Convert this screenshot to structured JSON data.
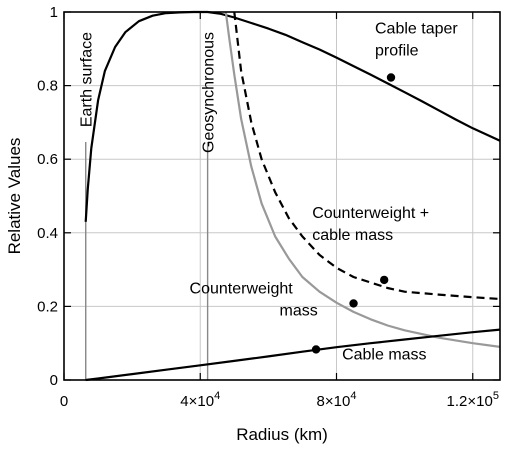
{
  "chart_data": {
    "type": "line",
    "title": "",
    "xlabel": "Radius (km)",
    "ylabel": "Relative Values",
    "xlim": [
      0,
      128000
    ],
    "ylim": [
      0,
      1
    ],
    "x_ticks": [
      {
        "value": 0,
        "label": "0"
      },
      {
        "value": 40000,
        "label": "4×10",
        "exp": "4"
      },
      {
        "value": 80000,
        "label": "8×10",
        "exp": "4"
      },
      {
        "value": 120000,
        "label": "1.2×10",
        "exp": "5"
      }
    ],
    "y_ticks": [
      {
        "value": 0,
        "label": "0"
      },
      {
        "value": 0.2,
        "label": "0.2"
      },
      {
        "value": 0.4,
        "label": "0.4"
      },
      {
        "value": 0.6,
        "label": "0.6"
      },
      {
        "value": 0.8,
        "label": "0.8"
      },
      {
        "value": 1,
        "label": "1"
      }
    ],
    "grid": true,
    "series": [
      {
        "name": "Cable taper profile",
        "style": "solid",
        "color": "#000000",
        "x": [
          6378,
          7000,
          8000,
          10000,
          12000,
          15000,
          18000,
          22000,
          26000,
          30000,
          34000,
          38000,
          42164,
          46000,
          50000,
          55000,
          60000,
          65000,
          70000,
          75000,
          80000,
          85000,
          90000,
          95000,
          100000,
          105000,
          110000,
          115000,
          120000,
          128000
        ],
        "y": [
          0.43,
          0.52,
          0.63,
          0.76,
          0.84,
          0.905,
          0.945,
          0.975,
          0.99,
          0.997,
          0.999,
          1.0,
          1.0,
          0.995,
          0.985,
          0.97,
          0.955,
          0.938,
          0.918,
          0.898,
          0.876,
          0.853,
          0.83,
          0.806,
          0.782,
          0.758,
          0.733,
          0.708,
          0.684,
          0.65
        ]
      },
      {
        "name": "Counterweight + cable mass",
        "style": "dashed",
        "color": "#000000",
        "x": [
          50000,
          52000,
          55000,
          58000,
          62000,
          66000,
          70000,
          75000,
          80000,
          85000,
          90000,
          95000,
          100000,
          110000,
          120000,
          128000
        ],
        "y": [
          1.0,
          0.84,
          0.7,
          0.6,
          0.51,
          0.44,
          0.39,
          0.34,
          0.305,
          0.28,
          0.265,
          0.25,
          0.24,
          0.232,
          0.225,
          0.22
        ]
      },
      {
        "name": "Counterweight mass",
        "style": "solid",
        "color": "#999999",
        "x": [
          47500,
          48500,
          50000,
          52000,
          55000,
          58000,
          62000,
          66000,
          70000,
          75000,
          80000,
          85000,
          90000,
          95000,
          100000,
          110000,
          120000,
          128000
        ],
        "y": [
          1.0,
          0.93,
          0.83,
          0.71,
          0.58,
          0.48,
          0.39,
          0.33,
          0.28,
          0.24,
          0.21,
          0.185,
          0.165,
          0.148,
          0.135,
          0.115,
          0.1,
          0.09
        ]
      },
      {
        "name": "Cable mass",
        "style": "solid",
        "color": "#000000",
        "x": [
          6378,
          10000,
          20000,
          30000,
          40000,
          50000,
          60000,
          70000,
          80000,
          90000,
          100000,
          110000,
          120000,
          128000
        ],
        "y": [
          0.0,
          0.004,
          0.016,
          0.028,
          0.04,
          0.052,
          0.064,
          0.077,
          0.089,
          0.1,
          0.11,
          0.12,
          0.13,
          0.137
        ]
      }
    ],
    "markers": [
      {
        "x": 96000,
        "y": 0.822,
        "label": "Cable taper profile",
        "text_lines": [
          "Cable taper",
          "profile"
        ]
      },
      {
        "x": 94000,
        "y": 0.272,
        "label": "Counterweight + cable mass",
        "text_lines": [
          "Counterweight +",
          "cable mass"
        ]
      },
      {
        "x": 85000,
        "y": 0.208,
        "label": "Counterweight mass",
        "text_lines": [
          "Counterweight",
          "mass"
        ]
      },
      {
        "x": 74000,
        "y": 0.083,
        "label": "Cable mass",
        "text_lines": [
          "Cable mass"
        ]
      }
    ],
    "vertical_lines": [
      {
        "x": 6378,
        "label": "Earth  surface"
      },
      {
        "x": 42164,
        "label": "Geosynchronous"
      }
    ]
  }
}
